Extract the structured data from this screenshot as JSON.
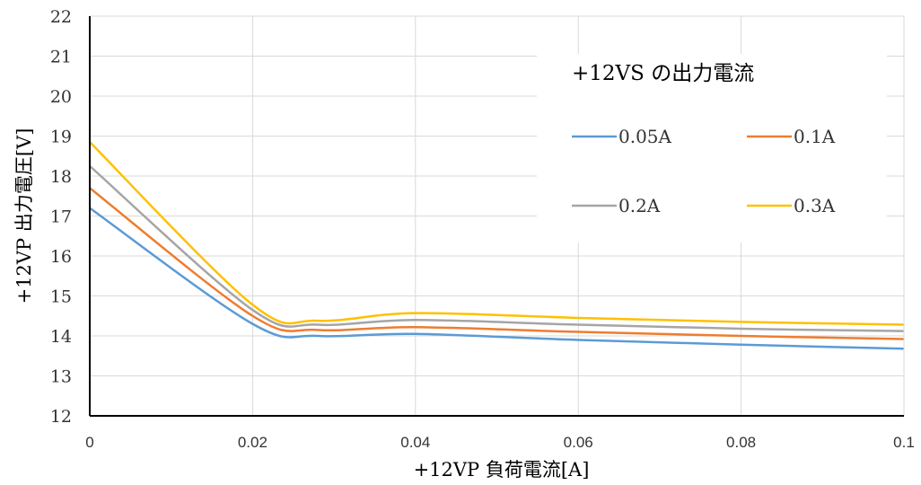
{
  "chart_data": {
    "type": "line",
    "title": "",
    "xlabel": "+12VP 負荷電流[A]",
    "ylabel": "+12VP 出力電圧[V]",
    "xlim": [
      0,
      0.1
    ],
    "ylim": [
      12,
      22
    ],
    "x_ticks": [
      "0",
      "0.02",
      "0.04",
      "0.06",
      "0.08",
      "0.1"
    ],
    "y_ticks": [
      "12",
      "13",
      "14",
      "15",
      "16",
      "17",
      "18",
      "19",
      "20",
      "21",
      "22"
    ],
    "grid": true,
    "legend": {
      "title": "+12VS の出力電流",
      "placement": "top-right"
    },
    "x": [
      0,
      0.02,
      0.028,
      0.04,
      0.06,
      0.08,
      0.1
    ],
    "series": [
      {
        "name": "0.05A",
        "color": "#5B9BD5",
        "values": [
          17.2,
          14.3,
          14.0,
          14.05,
          13.9,
          13.78,
          13.68
        ]
      },
      {
        "name": "0.1A",
        "color": "#ED7D31",
        "values": [
          17.7,
          14.5,
          14.15,
          14.22,
          14.1,
          14.0,
          13.92
        ]
      },
      {
        "name": "0.2A",
        "color": "#A5A5A5",
        "values": [
          18.25,
          14.65,
          14.28,
          14.4,
          14.28,
          14.18,
          14.12
        ]
      },
      {
        "name": "0.3A",
        "color": "#FFC000",
        "values": [
          18.85,
          14.78,
          14.38,
          14.57,
          14.45,
          14.35,
          14.28
        ]
      }
    ]
  }
}
